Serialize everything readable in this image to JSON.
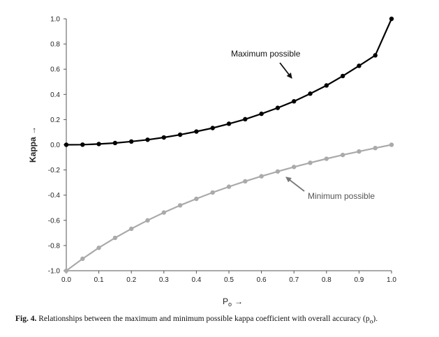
{
  "caption": {
    "label": "Fig. 4.",
    "text": "Relationships between the maximum and minimum possible kappa coefficient with overall accuracy (p",
    "sub": "o",
    "end": ")."
  },
  "chart_data": {
    "type": "line",
    "xlabel": "P",
    "xlabel_sub": "o",
    "xlabel_arrow": "→",
    "ylabel": "Kappa →",
    "xlim": [
      0.0,
      1.0
    ],
    "ylim": [
      -1.0,
      1.0
    ],
    "x_ticks": [
      "0.0",
      "0.1",
      "0.2",
      "0.3",
      "0.4",
      "0.5",
      "0.6",
      "0.7",
      "0.8",
      "0.9",
      "1.0"
    ],
    "y_ticks": [
      "1.0",
      "0.8",
      "0.6",
      "0.4",
      "0.2",
      "0.0",
      "-0.2",
      "-0.4",
      "-0.6",
      "-0.8",
      "-1.0"
    ],
    "grid": false,
    "x": [
      0.0,
      0.05,
      0.1,
      0.15,
      0.2,
      0.25,
      0.3,
      0.35,
      0.4,
      0.45,
      0.5,
      0.55,
      0.6,
      0.65,
      0.7,
      0.75,
      0.8,
      0.85,
      0.9,
      0.95,
      1.0
    ],
    "series": [
      {
        "name": "Maximum possible",
        "color": "#000000",
        "values": [
          0.0,
          0.001,
          0.006,
          0.014,
          0.026,
          0.04,
          0.058,
          0.08,
          0.105,
          0.133,
          0.167,
          0.203,
          0.246,
          0.293,
          0.345,
          0.406,
          0.471,
          0.546,
          0.627,
          0.71,
          1.0
        ]
      },
      {
        "name": "Minimum possible",
        "color": "#aaaaaa",
        "values": [
          -1.0,
          -0.905,
          -0.818,
          -0.739,
          -0.667,
          -0.6,
          -0.538,
          -0.481,
          -0.429,
          -0.379,
          -0.333,
          -0.29,
          -0.25,
          -0.212,
          -0.176,
          -0.143,
          -0.111,
          -0.081,
          -0.053,
          -0.026,
          0.0
        ]
      }
    ],
    "annotations": [
      {
        "text": "Maximum possible",
        "series": 0
      },
      {
        "text": "Minimum possible",
        "series": 1
      }
    ]
  }
}
